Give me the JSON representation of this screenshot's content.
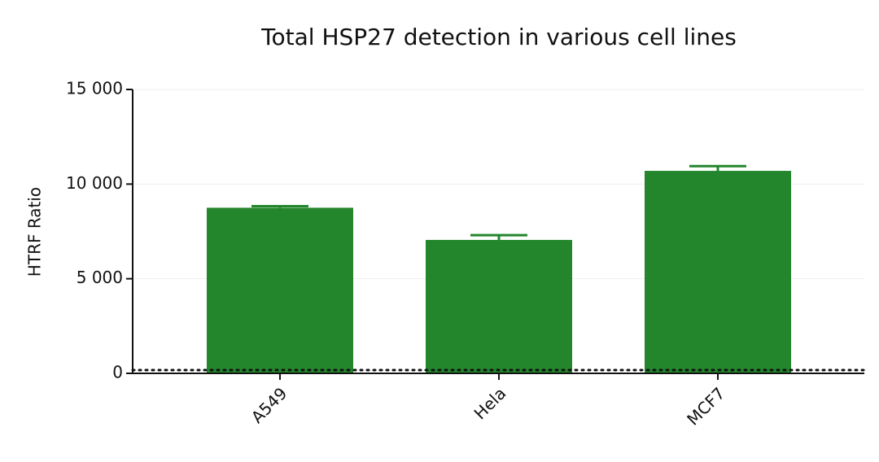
{
  "chart_data": {
    "type": "bar",
    "title": "Total HSP27 detection in various cell lines",
    "y_label": "HTRF Ratio",
    "categories": [
      "A549",
      "Hela",
      "MCF7"
    ],
    "values": [
      8750,
      7050,
      10700
    ],
    "errors": [
      80,
      250,
      250
    ],
    "color": "#23862c",
    "reference_line": 170,
    "ylim": [
      0,
      15000
    ],
    "yticks": [
      0,
      {
        "value": 5000,
        "label": "5 000"
      },
      {
        "value": 10000,
        "label": "10 000"
      },
      {
        "value": 15000,
        "label": "15 000"
      }
    ],
    "grid": true
  }
}
